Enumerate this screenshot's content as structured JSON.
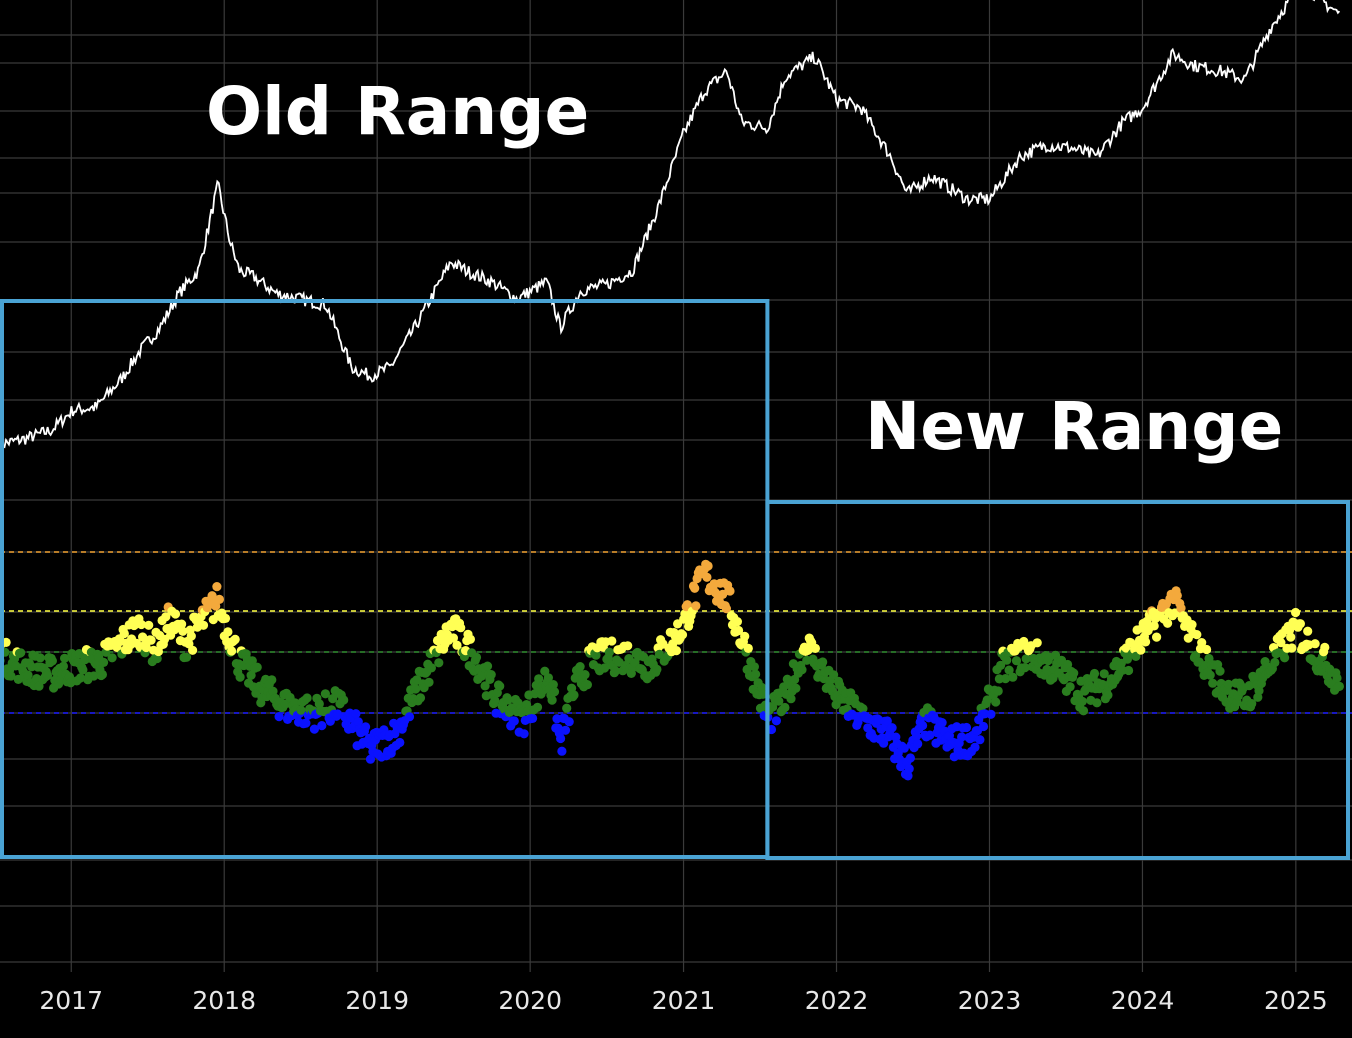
{
  "chart_data": {
    "type": "scatter",
    "title": "",
    "xlabel": "",
    "ylabel": "",
    "x_axis": {
      "type": "date",
      "range": [
        "2016-07-15",
        "2025-05-15"
      ],
      "tick_labels": [
        "2017",
        "2018",
        "2019",
        "2020",
        "2021",
        "2022",
        "2023",
        "2024",
        "2025"
      ]
    },
    "grid": true,
    "background": "#000000",
    "annotations": [
      {
        "id": "old-range",
        "text": "Old Range",
        "box_x": [
          "2016-07-15",
          "2021-07-20"
        ]
      },
      {
        "id": "new-range",
        "text": "New Range",
        "box_x": [
          "2021-07-20",
          "2025-05-15"
        ]
      }
    ],
    "box_color": "#4aa3d4",
    "threshold_lines": [
      {
        "band": "orange",
        "color": "#f0a030"
      },
      {
        "band": "yellow",
        "color": "#ffff40"
      },
      {
        "band": "green",
        "color": "#2e8b2e"
      },
      {
        "band": "blue",
        "color": "#1a1aff"
      }
    ],
    "band_colors": {
      "red": "#ff2a1a",
      "orange": "#f3a93c",
      "yellow": "#ffff55",
      "green": "#2a7d1f",
      "blue": "#0b12ff"
    },
    "price_line_color": "#ffffff",
    "price_series": {
      "x": [
        "2016-07-15",
        "2016-09-15",
        "2016-11-15",
        "2017-01-05",
        "2017-03-01",
        "2017-05-01",
        "2017-06-15",
        "2017-08-01",
        "2017-09-15",
        "2017-11-01",
        "2017-12-17",
        "2018-01-15",
        "2018-02-06",
        "2018-03-10",
        "2018-05-05",
        "2018-07-01",
        "2018-09-01",
        "2018-11-01",
        "2018-12-15",
        "2019-02-01",
        "2019-04-01",
        "2019-06-26",
        "2019-08-01",
        "2019-10-01",
        "2019-12-01",
        "2020-02-10",
        "2020-03-13",
        "2020-05-01",
        "2020-07-01",
        "2020-09-01",
        "2020-11-01",
        "2021-01-01",
        "2021-02-20",
        "2021-04-14",
        "2021-05-20",
        "2021-07-20",
        "2021-09-01",
        "2021-11-10",
        "2022-01-01",
        "2022-03-01",
        "2022-05-10",
        "2022-06-18",
        "2022-08-15",
        "2022-11-10",
        "2023-01-01",
        "2023-03-15",
        "2023-05-15",
        "2023-07-15",
        "2023-09-15",
        "2023-11-15",
        "2024-01-01",
        "2024-03-14",
        "2024-05-01",
        "2024-07-05",
        "2024-09-01",
        "2024-11-01",
        "2024-12-17",
        "2025-01-20",
        "2025-03-10",
        "2025-04-15"
      ],
      "y": [
        0.09,
        0.11,
        0.14,
        0.21,
        0.22,
        0.32,
        0.42,
        0.5,
        0.62,
        0.7,
        1.0,
        0.8,
        0.7,
        0.68,
        0.62,
        0.6,
        0.58,
        0.36,
        0.33,
        0.36,
        0.5,
        0.73,
        0.7,
        0.66,
        0.6,
        0.66,
        0.5,
        0.63,
        0.65,
        0.7,
        0.92,
        1.18,
        1.33,
        1.4,
        1.22,
        1.2,
        1.38,
        1.45,
        1.3,
        1.27,
        1.1,
        0.97,
        1.03,
        0.95,
        0.95,
        1.1,
        1.14,
        1.13,
        1.1,
        1.22,
        1.27,
        1.46,
        1.42,
        1.4,
        1.37,
        1.55,
        1.65,
        1.7,
        1.64,
        1.6
      ]
    },
    "oscillator_anchors": {
      "x": [
        "2016-07-15",
        "2016-09-15",
        "2016-11-15",
        "2017-01-01",
        "2017-03-15",
        "2017-06-10",
        "2017-07-20",
        "2017-08-25",
        "2017-10-01",
        "2017-12-15",
        "2018-02-06",
        "2018-04-01",
        "2018-06-01",
        "2018-08-01",
        "2018-10-01",
        "2018-12-15",
        "2019-02-15",
        "2019-04-01",
        "2019-06-26",
        "2019-08-20",
        "2019-10-15",
        "2019-12-15",
        "2020-02-15",
        "2020-03-13",
        "2020-04-15",
        "2020-06-01",
        "2020-08-15",
        "2020-10-15",
        "2020-12-20",
        "2021-02-20",
        "2021-04-14",
        "2021-06-01",
        "2021-07-20",
        "2021-09-01",
        "2021-10-20",
        "2022-01-01",
        "2022-03-01",
        "2022-05-01",
        "2022-06-18",
        "2022-08-01",
        "2022-10-01",
        "2022-12-01",
        "2023-02-01",
        "2023-04-01",
        "2023-06-15",
        "2023-08-15",
        "2023-10-15",
        "2023-12-15",
        "2024-03-14",
        "2024-05-15",
        "2024-07-15",
        "2024-09-01",
        "2024-11-01",
        "2025-01-01",
        "2025-03-01",
        "2025-04-15"
      ],
      "y": [
        0.95,
        0.75,
        0.65,
        0.75,
        0.85,
        1.4,
        1.05,
        1.55,
        1.15,
        1.85,
        0.85,
        0.4,
        0.1,
        0.0,
        0.12,
        -0.6,
        -0.35,
        0.3,
        1.4,
        0.95,
        0.2,
        -0.1,
        0.65,
        -0.5,
        0.4,
        0.9,
        0.95,
        0.8,
        1.3,
        2.3,
        1.9,
        1.0,
        -0.1,
        0.2,
        1.15,
        0.3,
        -0.1,
        -0.35,
        -0.85,
        -0.15,
        -0.5,
        -0.4,
        0.75,
        1.0,
        0.7,
        0.3,
        0.55,
        1.1,
        1.85,
        1.0,
        0.4,
        0.2,
        0.8,
        1.4,
        0.9,
        0.55
      ]
    }
  }
}
